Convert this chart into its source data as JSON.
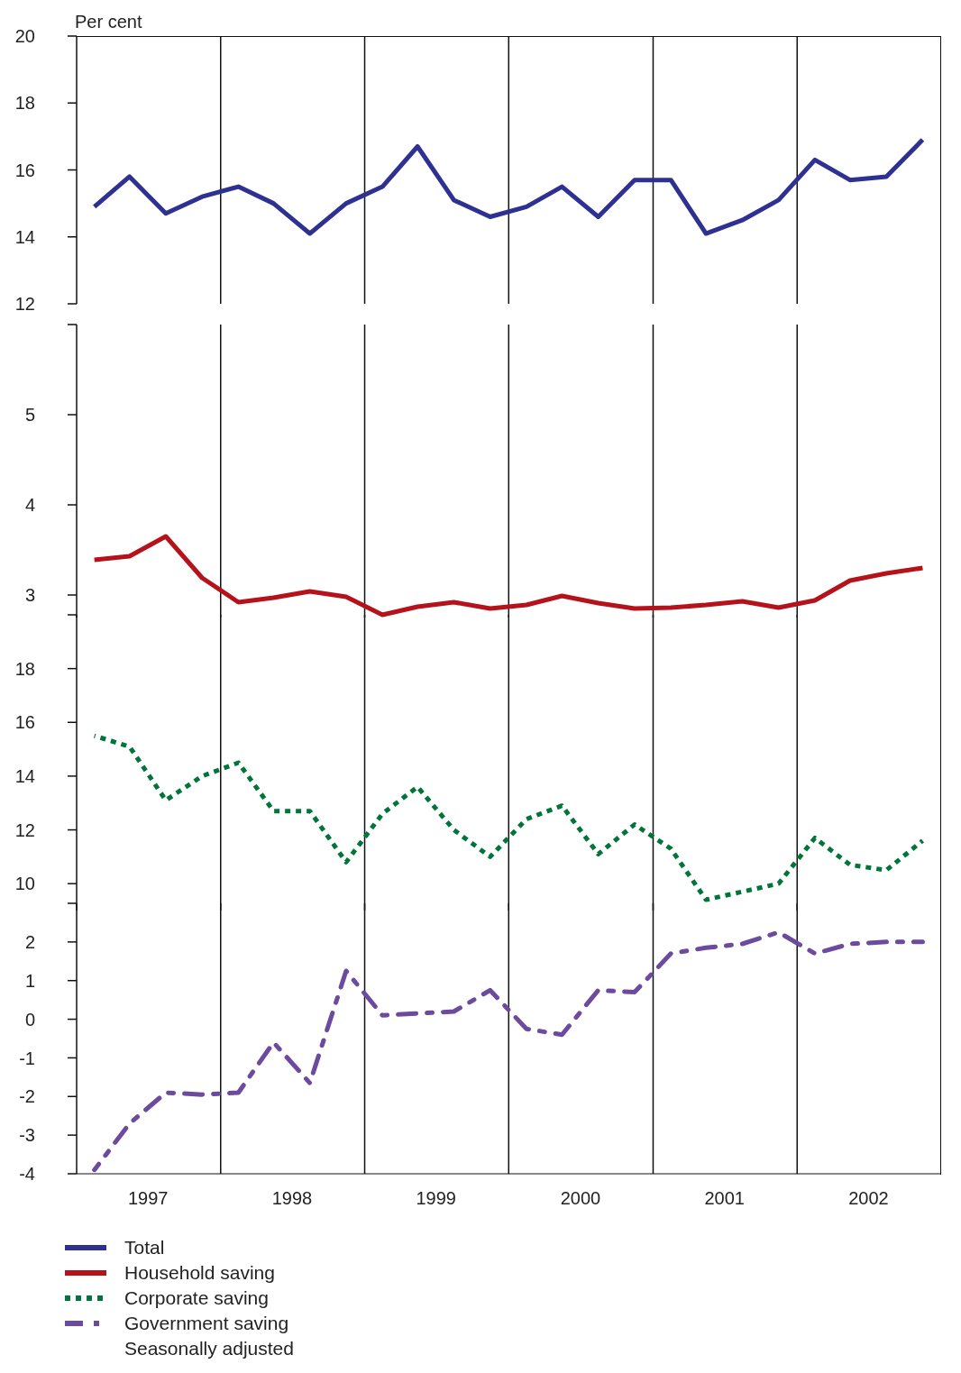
{
  "chart_data": [
    {
      "type": "line",
      "ylabel": "Per cent",
      "x": [
        "1997-02-15",
        "1997-05-15",
        "1997-08-15",
        "1997-11-15",
        "1998-02-15",
        "1998-05-15",
        "1998-08-15",
        "1998-11-15",
        "1999-02-15",
        "1999-05-15",
        "1999-08-15",
        "1999-11-15",
        "2000-02-15",
        "2000-05-15",
        "2000-08-15",
        "2000-11-15",
        "2001-02-15",
        "2001-05-15",
        "2001-08-15",
        "2001-11-15",
        "2002-02-15",
        "2002-05-15",
        "2002-08-15",
        "2002-11-15"
      ],
      "series": [
        {
          "name": "Total",
          "color": "#2e3192",
          "line_style": "solid",
          "values": [
            14.9,
            15.8,
            14.7,
            15.2,
            15.5,
            15.0,
            14.1,
            15.0,
            15.5,
            16.7,
            15.1,
            14.6,
            14.9,
            15.5,
            14.6,
            15.7,
            15.7,
            14.1,
            14.5,
            15.1,
            16.3,
            15.7,
            15.8,
            16.9
          ]
        }
      ],
      "xlim": [
        "1997-01-01",
        "2003-01-01"
      ],
      "ylim": [
        12,
        20
      ],
      "yticks": [
        12,
        14,
        16,
        18,
        20
      ],
      "tick_labels": "y",
      "legend": "bottom",
      "marker": "none",
      "ref_lines": [
        {
          "axis": "x",
          "value": "1998-01-01"
        },
        {
          "axis": "x",
          "value": "1999-01-01"
        },
        {
          "axis": "x",
          "value": "2000-01-01"
        },
        {
          "axis": "x",
          "value": "2001-01-01"
        },
        {
          "axis": "x",
          "value": "2002-01-01"
        }
      ]
    },
    {
      "type": "line",
      "x": [
        "1997-02-15",
        "1997-05-15",
        "1997-08-15",
        "1997-11-15",
        "1998-02-15",
        "1998-05-15",
        "1998-08-15",
        "1998-11-15",
        "1999-02-15",
        "1999-05-15",
        "1999-08-15",
        "1999-11-15",
        "2000-02-15",
        "2000-05-15",
        "2000-08-15",
        "2000-11-15",
        "2001-02-15",
        "2001-05-15",
        "2001-08-15",
        "2001-11-15",
        "2002-02-15",
        "2002-05-15",
        "2002-08-15",
        "2002-11-15"
      ],
      "series": [
        {
          "name": "Household saving",
          "color": "#b5121b",
          "line_style": "solid",
          "values": [
            3.39,
            3.43,
            3.65,
            3.19,
            2.92,
            2.97,
            3.04,
            2.98,
            2.78,
            2.87,
            2.92,
            2.85,
            2.89,
            2.99,
            2.91,
            2.85,
            2.86,
            2.89,
            2.93,
            2.86,
            2.94,
            3.16,
            3.24,
            3.3
          ]
        }
      ],
      "xlim": [
        "1997-01-01",
        "2003-01-01"
      ],
      "ylim": [
        2.75,
        6
      ],
      "yticks": [
        3,
        4,
        5,
        {
          "value": 6,
          "label": null
        }
      ],
      "tick_labels": "y",
      "legend": "bottom",
      "marker": "none",
      "ref_lines": [
        {
          "axis": "x",
          "value": "1998-01-01"
        },
        {
          "axis": "x",
          "value": "1999-01-01"
        },
        {
          "axis": "x",
          "value": "2000-01-01"
        },
        {
          "axis": "x",
          "value": "2001-01-01"
        },
        {
          "axis": "x",
          "value": "2002-01-01"
        }
      ]
    },
    {
      "type": "line",
      "x": [
        "1997-02-15",
        "1997-05-15",
        "1997-08-15",
        "1997-11-15",
        "1998-02-15",
        "1998-05-15",
        "1998-08-15",
        "1998-11-15",
        "1999-02-15",
        "1999-05-15",
        "1999-08-15",
        "1999-11-15",
        "2000-02-15",
        "2000-05-15",
        "2000-08-15",
        "2000-11-15",
        "2001-02-15",
        "2001-05-15",
        "2001-08-15",
        "2001-11-15",
        "2002-02-15",
        "2002-05-15",
        "2002-08-15",
        "2002-11-15"
      ],
      "series": [
        {
          "name": "Corporate saving",
          "color": "#00753a",
          "line_style": "dotted",
          "values": [
            15.5,
            15.1,
            13.1,
            14.0,
            14.5,
            12.7,
            12.7,
            10.8,
            12.6,
            13.6,
            12.0,
            11.0,
            12.4,
            12.9,
            11.1,
            12.2,
            11.3,
            9.4,
            9.7,
            10.0,
            11.7,
            10.7,
            10.5,
            11.6
          ]
        }
      ],
      "xlim": [
        "1997-01-01",
        "2003-01-01"
      ],
      "ylim": [
        9,
        20
      ],
      "yticks": [
        10,
        12,
        14,
        16,
        18,
        {
          "value": 20,
          "label": null
        }
      ],
      "tick_labels": "y",
      "legend": "bottom",
      "marker": "none",
      "ref_lines": [
        {
          "axis": "x",
          "value": "1998-01-01"
        },
        {
          "axis": "x",
          "value": "1999-01-01"
        },
        {
          "axis": "x",
          "value": "2000-01-01"
        },
        {
          "axis": "x",
          "value": "2001-01-01"
        },
        {
          "axis": "x",
          "value": "2002-01-01"
        }
      ]
    },
    {
      "type": "line",
      "x": [
        "1997-02-15",
        "1997-05-15",
        "1997-08-15",
        "1997-11-15",
        "1998-02-15",
        "1998-05-15",
        "1998-08-15",
        "1998-11-15",
        "1999-02-15",
        "1999-05-15",
        "1999-08-15",
        "1999-11-15",
        "2000-02-15",
        "2000-05-15",
        "2000-08-15",
        "2000-11-15",
        "2001-02-15",
        "2001-05-15",
        "2001-08-15",
        "2001-11-15",
        "2002-02-15",
        "2002-05-15",
        "2002-08-15",
        "2002-11-15"
      ],
      "series": [
        {
          "name": "Government saving",
          "color": "#6c4a9e",
          "line_style": "dashed",
          "values": [
            -3.9,
            -2.7,
            -1.9,
            -1.95,
            -1.9,
            -0.6,
            -1.65,
            1.25,
            0.1,
            0.15,
            0.2,
            0.75,
            -0.25,
            -0.4,
            0.75,
            0.7,
            1.7,
            1.85,
            1.95,
            2.25,
            1.7,
            1.95,
            2.0,
            2.0
          ]
        }
      ],
      "xlim": [
        "1997-01-01",
        "2003-01-01"
      ],
      "xticks": [
        {
          "value": "1997-07-01",
          "label": "1997"
        },
        {
          "value": "1998-07-01",
          "label": "1998"
        },
        {
          "value": "1999-07-01",
          "label": "1999"
        },
        {
          "value": "2000-07-01",
          "label": "2000"
        },
        {
          "value": "2001-07-01",
          "label": "2001"
        },
        {
          "value": "2002-07-01",
          "label": "2002"
        }
      ],
      "ylim": [
        -4,
        3
      ],
      "yticks": [
        -4,
        -3,
        -2,
        -1,
        0,
        1,
        2,
        {
          "value": 3,
          "label": null
        }
      ],
      "legend": "bottom",
      "marker": "none",
      "ref_lines": [
        {
          "axis": "x",
          "value": "1998-01-01"
        },
        {
          "axis": "x",
          "value": "1999-01-01"
        },
        {
          "axis": "x",
          "value": "2000-01-01"
        },
        {
          "axis": "x",
          "value": "2001-01-01"
        },
        {
          "axis": "x",
          "value": "2002-01-01"
        }
      ],
      "annotations": [
        "Seasonally adjusted"
      ]
    }
  ]
}
